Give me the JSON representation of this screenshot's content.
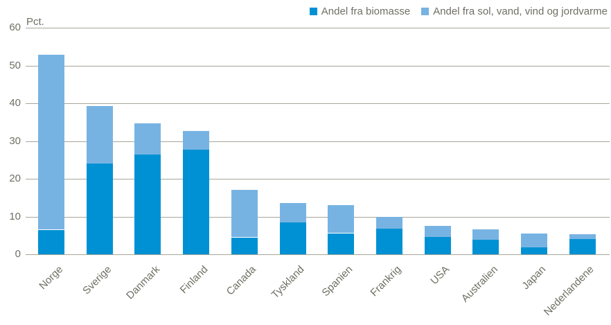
{
  "axis": {
    "unit_label": "Pct.",
    "grid_color": "#a6a69a",
    "text_color": "#6f6f64"
  },
  "legend": {
    "items": [
      {
        "label": "Andel fra biomasse",
        "color": "#0091d4"
      },
      {
        "label": "Andel fra sol, vand, vind og jordvarme",
        "color": "#77b3e2"
      }
    ]
  },
  "chart_data": {
    "type": "bar",
    "stacked": true,
    "title": "",
    "xlabel": "",
    "ylabel": "Pct.",
    "ylim": [
      0,
      60
    ],
    "yticks": [
      0,
      10,
      20,
      30,
      40,
      50,
      60
    ],
    "grid": true,
    "legend_position": "top-right",
    "categories": [
      "Norge",
      "Sverige",
      "Danmark",
      "Finland",
      "Canada",
      "Tyskland",
      "Spanien",
      "Frankrig",
      "USA",
      "Australien",
      "Japan",
      "Nederlandene"
    ],
    "series": [
      {
        "name": "Andel fra biomasse",
        "color": "#0091d4",
        "values": [
          6.5,
          24.0,
          26.4,
          27.7,
          4.5,
          8.5,
          5.6,
          6.8,
          4.6,
          3.9,
          1.9,
          4.0
        ]
      },
      {
        "name": "Andel fra sol, vand, vind og jordvarme",
        "color": "#77b3e2",
        "values": [
          46.3,
          15.2,
          8.2,
          5.0,
          12.6,
          5.1,
          7.4,
          3.2,
          3.0,
          2.8,
          3.6,
          1.4
        ]
      }
    ],
    "totals": [
      52.8,
      39.2,
      34.6,
      32.7,
      17.1,
      13.6,
      13.0,
      10.0,
      7.6,
      6.7,
      5.5,
      5.4
    ]
  }
}
